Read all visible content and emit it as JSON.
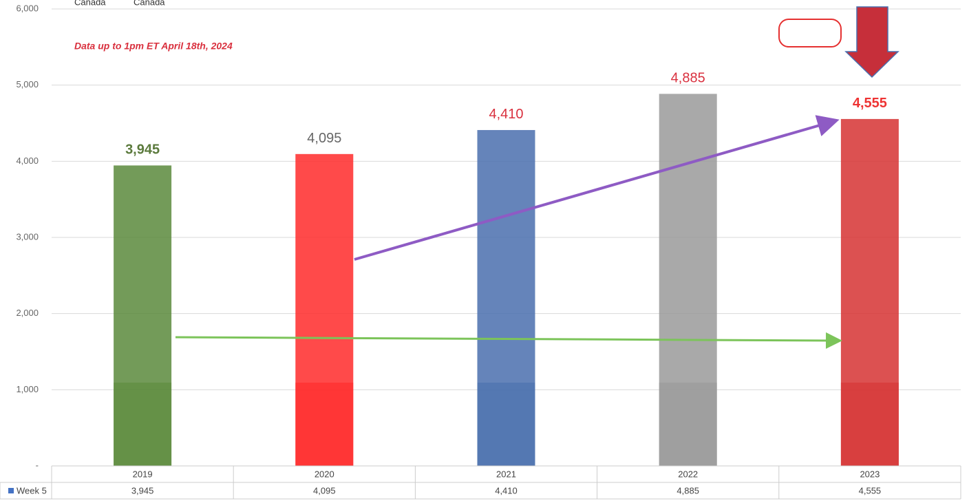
{
  "chart_data": {
    "type": "bar",
    "top_labels": [
      "Canada",
      "Canada"
    ],
    "annotation": "Data up to 1pm ET April 18th, 2024",
    "categories": [
      "2019",
      "2020",
      "2021",
      "2022",
      "2023"
    ],
    "series": [
      {
        "name": "Week 5",
        "color": "#4472c4",
        "values": [
          3945,
          4095,
          4410,
          4885,
          4555
        ],
        "value_labels": [
          "3,945",
          "4,095",
          "4,410",
          "4,885",
          "4,555"
        ]
      }
    ],
    "bar_colors": [
      "#5b8a3c",
      "#ff2a2a",
      "#4a6fae",
      "#9a9a9a",
      "#d63333"
    ],
    "label_colors": [
      "#5b7a3c",
      "#666666",
      "#d9303e",
      "#d9303e",
      "#ee3333"
    ],
    "ylim": [
      0,
      6000
    ],
    "yticks": [
      {
        "value": 0,
        "label": "-"
      },
      {
        "value": 1000,
        "label": "1,000"
      },
      {
        "value": 2000,
        "label": "2,000"
      },
      {
        "value": 3000,
        "label": "3,000"
      },
      {
        "value": 4000,
        "label": "4,000"
      },
      {
        "value": 5000,
        "label": "5,000"
      },
      {
        "value": 6000,
        "label": "6,000"
      }
    ],
    "grid": true
  }
}
